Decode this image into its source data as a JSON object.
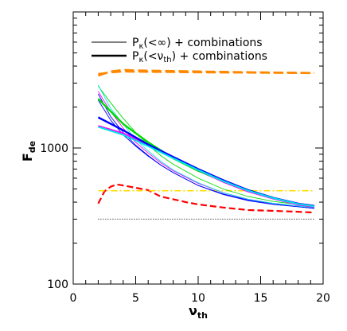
{
  "chart_data": {
    "type": "line",
    "title": "",
    "xlabel": {
      "main": "ν",
      "sub": "th"
    },
    "ylabel": {
      "main": "F",
      "sub": "de"
    },
    "xlim": [
      0,
      20
    ],
    "ylim": [
      100,
      10000
    ],
    "yscale": "log",
    "xticks": [
      0,
      5,
      10,
      15,
      20
    ],
    "xtick_labels": [
      "0",
      "5",
      "10",
      "15",
      "20"
    ],
    "yticks": [
      100,
      1000
    ],
    "ytick_labels": [
      "100",
      "1000"
    ],
    "grid": false,
    "legend_position": "top-right",
    "legend": [
      {
        "prefix": "P",
        "subscript": "κ",
        "paren": "(<∞)",
        "suffix": " + combinations",
        "style": "thin"
      },
      {
        "prefix": "P",
        "subscript": "κ",
        "paren_main": "(<ν",
        "paren_sub": "th",
        "paren_close": ")",
        "suffix": " + combinations",
        "style": "thick"
      }
    ],
    "series": [
      {
        "color": "#ff8800",
        "dash": "12,5",
        "width": 2.5,
        "x": [
          2,
          3,
          4,
          5,
          6,
          8,
          10,
          12,
          14,
          16,
          18,
          19.3
        ],
        "y": [
          3400,
          3650,
          3750,
          3720,
          3700,
          3680,
          3650,
          3630,
          3610,
          3590,
          3575,
          3560
        ]
      },
      {
        "color": "#ff8800",
        "dash": "12,5",
        "width": 2.5,
        "x": [
          2,
          3,
          4,
          5,
          6,
          8,
          10,
          12,
          14,
          16,
          18,
          19.3
        ],
        "y": [
          3500,
          3600,
          3650,
          3640,
          3630,
          3620,
          3600,
          3590,
          3580,
          3570,
          3560,
          3550
        ]
      },
      {
        "color": "#ff0000",
        "dash": "8,4",
        "width": 2.2,
        "x": [
          2,
          2.5,
          3,
          3.5,
          4,
          5,
          6,
          7,
          8,
          9,
          10,
          12,
          14,
          16,
          18,
          19.3
        ],
        "y": [
          390,
          480,
          520,
          540,
          530,
          510,
          490,
          440,
          420,
          400,
          385,
          365,
          350,
          345,
          340,
          335
        ]
      },
      {
        "color": "#ffdd00",
        "dash": "8,3,2,3",
        "width": 1.6,
        "x": [
          2,
          19.3
        ],
        "y": [
          485,
          485
        ]
      },
      {
        "color": "#000000",
        "dash": "1,2",
        "width": 1,
        "x": [
          2,
          19.3
        ],
        "y": [
          300,
          300
        ]
      },
      {
        "color": "#0000ff",
        "dash": "",
        "width": 0.9,
        "x": [
          2,
          3,
          4,
          5,
          6,
          7,
          8,
          10,
          12,
          14,
          16,
          18,
          19.3
        ],
        "y": [
          2500,
          1700,
          1300,
          1050,
          880,
          750,
          660,
          530,
          455,
          410,
          385,
          370,
          360
        ]
      },
      {
        "color": "#0000ff",
        "dash": "",
        "width": 0.9,
        "x": [
          2,
          3,
          4,
          5,
          6,
          7,
          8,
          10,
          12,
          14,
          16,
          18,
          19.3
        ],
        "y": [
          2250,
          1600,
          1250,
          1030,
          870,
          750,
          660,
          530,
          460,
          415,
          390,
          370,
          360
        ]
      },
      {
        "color": "#ff00ff",
        "dash": "",
        "width": 0.9,
        "x": [
          2,
          3,
          4,
          5,
          6,
          7,
          8,
          10,
          12,
          14,
          16,
          18,
          19.3
        ],
        "y": [
          2600,
          1850,
          1400,
          1100,
          920,
          780,
          680,
          550,
          470,
          420,
          392,
          375,
          365
        ]
      },
      {
        "color": "#00dd00",
        "dash": "",
        "width": 0.9,
        "x": [
          2,
          3,
          4,
          5,
          6,
          7,
          8,
          10,
          12,
          14,
          16,
          18,
          19.3
        ],
        "y": [
          2850,
          2150,
          1650,
          1300,
          1050,
          880,
          760,
          600,
          500,
          440,
          405,
          385,
          375
        ]
      },
      {
        "color": "#00e5e5",
        "dash": "",
        "width": 0.9,
        "x": [
          2,
          3,
          4,
          5,
          6,
          7,
          8,
          10,
          12,
          14,
          16,
          18,
          19.3
        ],
        "y": [
          2900,
          1950,
          1500,
          1150,
          950,
          800,
          690,
          555,
          470,
          420,
          392,
          374,
          365
        ]
      },
      {
        "color": "#00dd00",
        "dash": "",
        "width": 2.4,
        "x": [
          2,
          4,
          6,
          8,
          10,
          12,
          14,
          16,
          18,
          19.3
        ],
        "y": [
          2300,
          1500,
          1100,
          840,
          680,
          570,
          490,
          430,
          385,
          370
        ]
      },
      {
        "color": "#ff00ff",
        "dash": "",
        "width": 2.4,
        "x": [
          2,
          4,
          6,
          8,
          10,
          12,
          14,
          16,
          18,
          19.3
        ],
        "y": [
          1450,
          1280,
          1050,
          850,
          690,
          565,
          480,
          425,
          385,
          370
        ]
      },
      {
        "color": "#0000ff",
        "dash": "",
        "width": 2.4,
        "x": [
          2,
          4,
          6,
          8,
          10,
          12,
          14,
          16,
          18,
          19.3
        ],
        "y": [
          1680,
          1350,
          1060,
          860,
          700,
          580,
          490,
          430,
          390,
          375
        ]
      },
      {
        "color": "#00e5e5",
        "dash": "",
        "width": 2.0,
        "x": [
          2,
          4,
          6,
          8,
          10,
          12,
          14,
          16,
          18,
          19.3
        ],
        "y": [
          1430,
          1250,
          1030,
          840,
          690,
          570,
          485,
          428,
          388,
          372
        ]
      }
    ]
  }
}
